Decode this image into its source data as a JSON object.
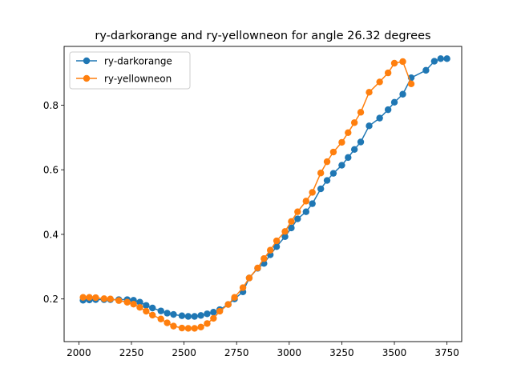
{
  "chart_data": {
    "type": "line",
    "title": "ry-darkorange and ry-yellowneon for angle 26.32 degrees",
    "xlabel": "",
    "ylabel": "",
    "xlim": [
      1930,
      3820
    ],
    "ylim": [
      0.068,
      0.982
    ],
    "xticks": [
      2000,
      2250,
      2500,
      2750,
      3000,
      3250,
      3500,
      3750
    ],
    "yticks": [
      0.2,
      0.4,
      0.6,
      0.8
    ],
    "ytick_labels": [
      "0.2",
      "0.4",
      "0.6",
      "0.8"
    ],
    "grid": false,
    "legend": "top-left",
    "series": [
      {
        "name": "ry-darkorange",
        "color": "#1f77b4",
        "marker": "circle",
        "x": [
          2020,
          2050,
          2080,
          2120,
          2150,
          2190,
          2230,
          2260,
          2290,
          2320,
          2350,
          2390,
          2420,
          2450,
          2490,
          2520,
          2550,
          2580,
          2610,
          2640,
          2670,
          2710,
          2740,
          2780,
          2810,
          2850,
          2880,
          2910,
          2940,
          2980,
          3010,
          3040,
          3080,
          3110,
          3150,
          3180,
          3210,
          3250,
          3280,
          3310,
          3340,
          3380,
          3430,
          3470,
          3500,
          3540,
          3580,
          3650,
          3690,
          3720,
          3750
        ],
        "y": [
          0.196,
          0.197,
          0.198,
          0.198,
          0.198,
          0.198,
          0.198,
          0.196,
          0.19,
          0.18,
          0.172,
          0.163,
          0.156,
          0.152,
          0.148,
          0.146,
          0.146,
          0.149,
          0.154,
          0.159,
          0.167,
          0.183,
          0.2,
          0.222,
          0.265,
          0.295,
          0.31,
          0.337,
          0.362,
          0.393,
          0.42,
          0.448,
          0.47,
          0.495,
          0.541,
          0.567,
          0.589,
          0.614,
          0.638,
          0.663,
          0.686,
          0.736,
          0.76,
          0.786,
          0.809,
          0.834,
          0.885,
          0.908,
          0.936,
          0.944,
          0.944
        ]
      },
      {
        "name": "ry-yellowneon",
        "color": "#ff7f0e",
        "marker": "circle",
        "x": [
          2020,
          2050,
          2080,
          2120,
          2150,
          2190,
          2230,
          2260,
          2290,
          2320,
          2350,
          2390,
          2420,
          2450,
          2490,
          2520,
          2550,
          2580,
          2610,
          2640,
          2670,
          2710,
          2740,
          2780,
          2810,
          2850,
          2880,
          2910,
          2940,
          2980,
          3010,
          3040,
          3080,
          3110,
          3150,
          3180,
          3210,
          3250,
          3280,
          3310,
          3340,
          3380,
          3430,
          3470,
          3500,
          3540,
          3580
        ],
        "y": [
          0.205,
          0.205,
          0.204,
          0.201,
          0.2,
          0.195,
          0.19,
          0.184,
          0.174,
          0.162,
          0.15,
          0.138,
          0.126,
          0.116,
          0.11,
          0.109,
          0.109,
          0.113,
          0.124,
          0.14,
          0.162,
          0.183,
          0.205,
          0.235,
          0.265,
          0.296,
          0.325,
          0.351,
          0.38,
          0.409,
          0.44,
          0.47,
          0.503,
          0.53,
          0.59,
          0.625,
          0.655,
          0.685,
          0.715,
          0.746,
          0.778,
          0.84,
          0.872,
          0.9,
          0.93,
          0.935,
          0.866
        ]
      }
    ]
  }
}
